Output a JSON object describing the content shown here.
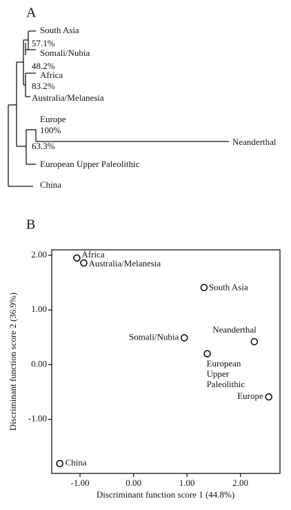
{
  "dendrogram": {
    "label": "A",
    "leaves": [
      "South Asia",
      "Somali/Nubia",
      "Africa",
      "Australia/Melanesia",
      "Europe",
      "Neanderthal",
      "European Upper Paleolithic",
      "China"
    ],
    "support": [
      "57.1%",
      "48.2%",
      "83.2%",
      "100%",
      "63.3%"
    ]
  },
  "chart_data": {
    "type": "scatter",
    "title": "B",
    "x_label": "Discriminant function score 1 (44.8%)",
    "y_label": "Discriminant function score 2 (36.9%)",
    "point_labels": [
      "Africa",
      "Australia/Melanesia",
      "South Asia",
      "Somali/Nubia",
      "Neanderthal",
      "European Upper Paleolithic",
      "Europe",
      "China"
    ],
    "x": [
      -1.06,
      -0.93,
      1.32,
      0.95,
      2.26,
      1.38,
      2.53,
      -1.38
    ],
    "values": [
      1.95,
      1.86,
      1.41,
      0.49,
      0.42,
      0.2,
      -0.59,
      -1.81
    ],
    "color": "#000000",
    "xlim": [
      -1.53,
      2.74
    ],
    "ylim": [
      -1.99,
      2.1
    ],
    "xticks": [
      {
        "value": -1,
        "label": "-1.00"
      },
      {
        "value": 0,
        "label": "0.00"
      },
      {
        "value": 1,
        "label": "1.00"
      },
      {
        "value": 2,
        "label": "2.00"
      }
    ],
    "yticks": [
      {
        "value": -1,
        "label": "-1.00"
      },
      {
        "value": 0,
        "label": "0.00"
      },
      {
        "value": 1,
        "label": "1.00"
      },
      {
        "value": 2,
        "label": "2.00"
      }
    ]
  }
}
